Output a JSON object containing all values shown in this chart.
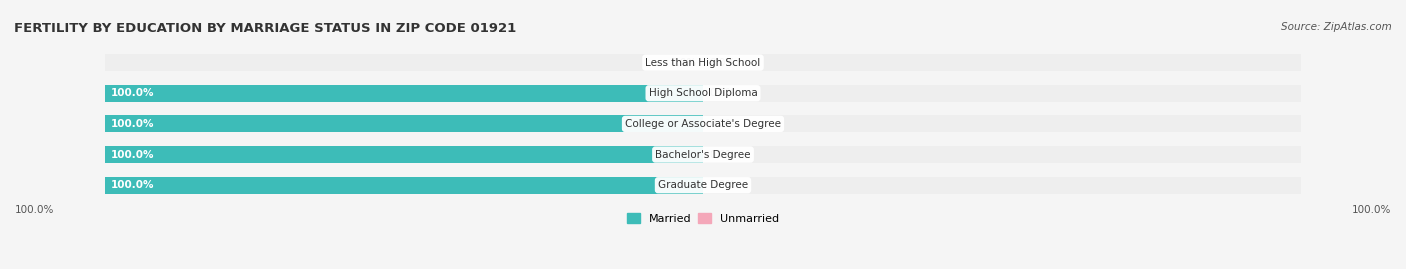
{
  "title": "FERTILITY BY EDUCATION BY MARRIAGE STATUS IN ZIP CODE 01921",
  "source": "Source: ZipAtlas.com",
  "categories": [
    "Less than High School",
    "High School Diploma",
    "College or Associate's Degree",
    "Bachelor's Degree",
    "Graduate Degree"
  ],
  "married_pct": [
    0.0,
    100.0,
    100.0,
    100.0,
    100.0
  ],
  "unmarried_pct": [
    0.0,
    0.0,
    0.0,
    0.0,
    0.0
  ],
  "married_color": "#3dbcb8",
  "unmarried_color": "#f4a7b9",
  "bar_bg_color": "#eeeeee",
  "bar_height": 0.55,
  "title_fontsize": 9.5,
  "label_fontsize": 7.5,
  "source_fontsize": 7.5,
  "legend_fontsize": 8,
  "axis_label_bottom_left": "100.0%",
  "axis_label_bottom_right": "100.0%",
  "fig_width": 14.06,
  "fig_height": 2.69,
  "background_color": "#f5f5f5"
}
